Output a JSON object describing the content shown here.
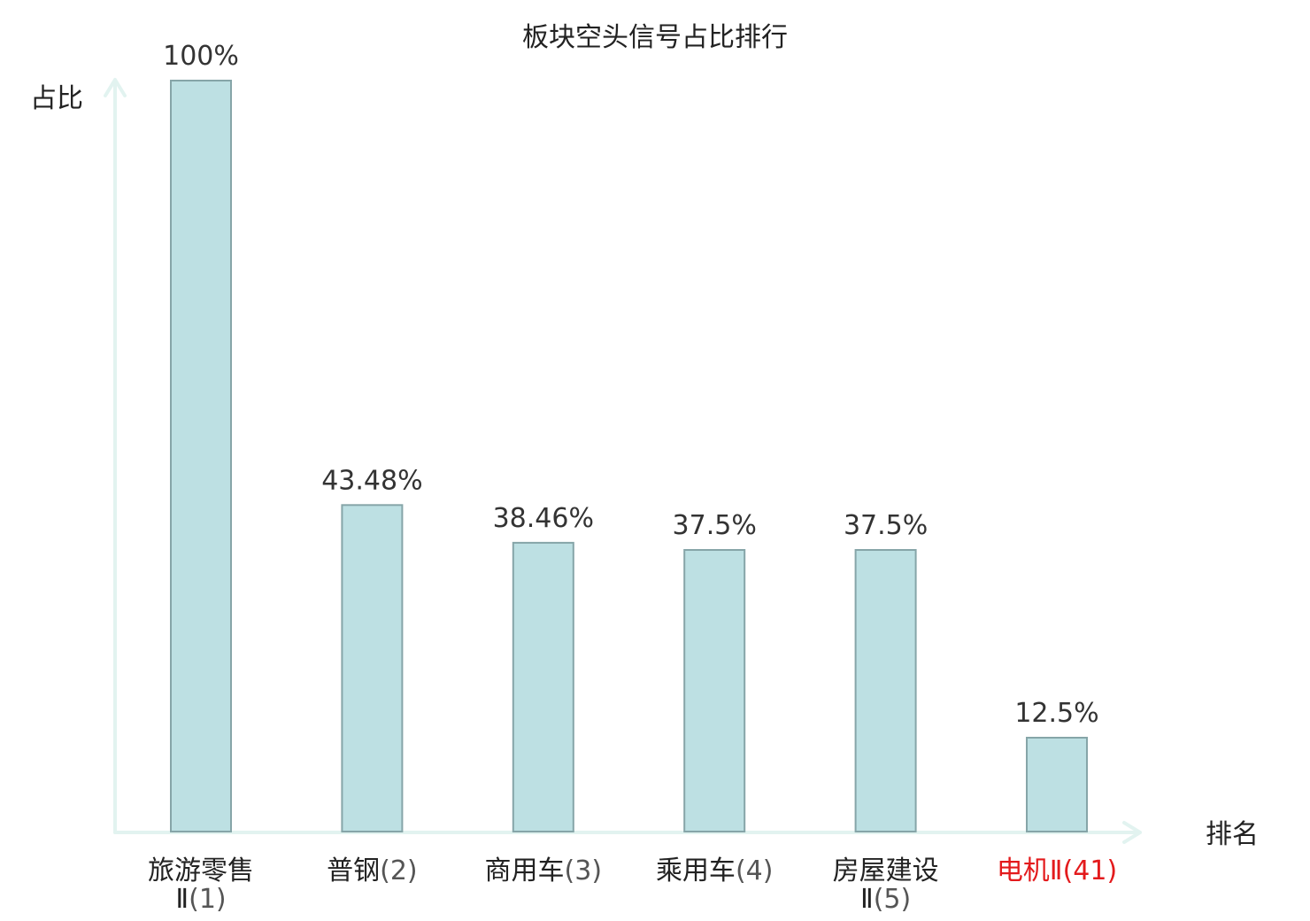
{
  "chart_data": {
    "type": "bar",
    "title": "板块空头信号占比排行",
    "ylabel": "占比",
    "xlabel": "排名",
    "ylim": [
      0,
      100
    ],
    "grid": false,
    "legend": "none",
    "categories": [
      {
        "name_lines": [
          "旅游零售",
          "Ⅱ"
        ],
        "rank": "(1)",
        "highlight": false
      },
      {
        "name_lines": [
          "普钢"
        ],
        "rank": "(2)",
        "highlight": false
      },
      {
        "name_lines": [
          "商用车"
        ],
        "rank": "(3)",
        "highlight": false
      },
      {
        "name_lines": [
          "乘用车"
        ],
        "rank": "(4)",
        "highlight": false
      },
      {
        "name_lines": [
          "房屋建设",
          "Ⅱ"
        ],
        "rank": "(5)",
        "highlight": false
      },
      {
        "name_lines": [
          "电机Ⅱ"
        ],
        "rank": "(41)",
        "highlight": true
      }
    ],
    "values": [
      100,
      43.48,
      38.46,
      37.5,
      37.5,
      12.5
    ],
    "value_labels": [
      "100%",
      "43.48%",
      "38.46%",
      "37.5%",
      "37.5%",
      "12.5%"
    ]
  },
  "colors": {
    "bar_fill": "#bde0e3",
    "bar_stroke": "#86a5a8",
    "axis": "#e2f3f0",
    "text": "#222222",
    "rank_text": "#555555",
    "highlight": "#e31a1c"
  }
}
